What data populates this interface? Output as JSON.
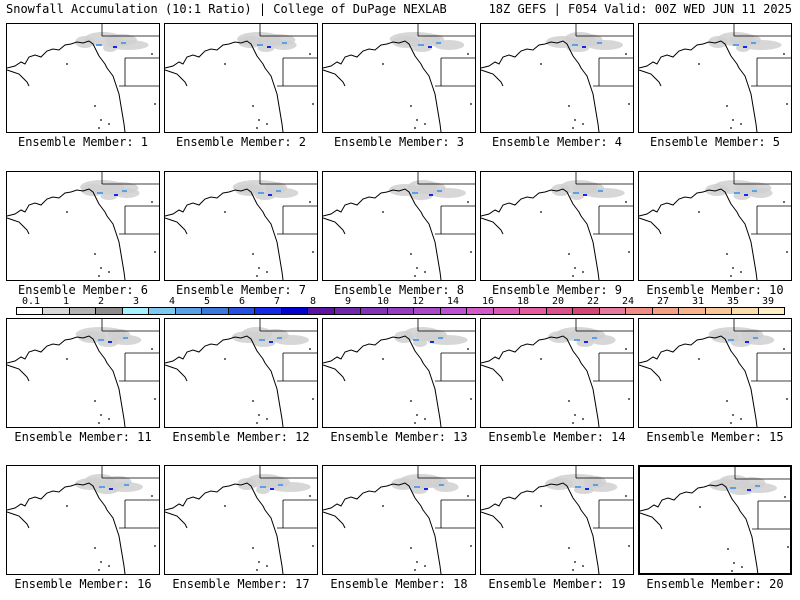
{
  "header": {
    "left_title": "Snowfall Accumulation (10:1 Ratio) | College of DuPage NEXLAB",
    "right_title": "18Z GEFS | F054 Valid: 00Z WED JUN 11 2025"
  },
  "panels": [
    {
      "label": "Ensemble Member: 1"
    },
    {
      "label": "Ensemble Member: 2"
    },
    {
      "label": "Ensemble Member: 3"
    },
    {
      "label": "Ensemble Member: 4"
    },
    {
      "label": "Ensemble Member: 5"
    },
    {
      "label": "Ensemble Member: 6"
    },
    {
      "label": "Ensemble Member: 7"
    },
    {
      "label": "Ensemble Member: 8"
    },
    {
      "label": "Ensemble Member: 9"
    },
    {
      "label": "Ensemble Member: 10"
    },
    {
      "label": "Ensemble Member: 11"
    },
    {
      "label": "Ensemble Member: 12"
    },
    {
      "label": "Ensemble Member: 13"
    },
    {
      "label": "Ensemble Member: 14"
    },
    {
      "label": "Ensemble Member: 15"
    },
    {
      "label": "Ensemble Member: 16"
    },
    {
      "label": "Ensemble Member: 17"
    },
    {
      "label": "Ensemble Member: 18"
    },
    {
      "label": "Ensemble Member: 19"
    },
    {
      "label": "Ensemble Member: 20"
    }
  ],
  "colorbar": {
    "labels": [
      "0.1",
      "1",
      "2",
      "3",
      "4",
      "5",
      "6",
      "7",
      "8",
      "9",
      "10",
      "12",
      "14",
      "16",
      "18",
      "20",
      "22",
      "24",
      "27",
      "31",
      "35",
      "39"
    ],
    "colors": [
      "#ffffff",
      "#d9d9d9",
      "#b3b3b3",
      "#8c8c8c",
      "#a6f0ff",
      "#7dc8f0",
      "#5aa0e6",
      "#3c78dc",
      "#2850e0",
      "#1428e6",
      "#0000d0",
      "#5a14a0",
      "#6e28aa",
      "#8232b4",
      "#963cbe",
      "#aa46c8",
      "#be50d2",
      "#d25ac8",
      "#dc5ab4",
      "#e65aa0",
      "#dc508c",
      "#d24678",
      "#e6789b",
      "#f08c82",
      "#f5a082",
      "#f8b48c",
      "#fac896",
      "#fcdcaa",
      "#feeec8"
    ]
  }
}
